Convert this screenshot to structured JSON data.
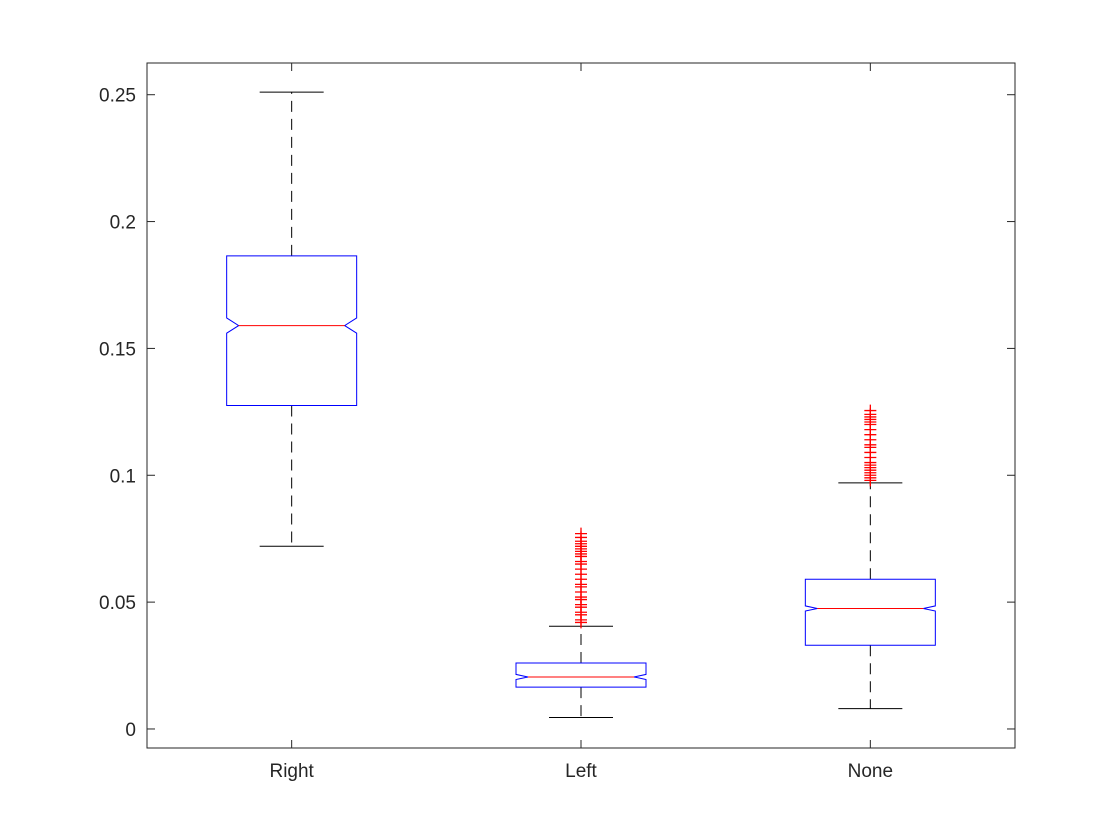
{
  "chart_data": {
    "type": "boxplot",
    "notched": true,
    "title": "",
    "xlabel": "",
    "ylabel": "",
    "ylim": [
      -0.0075,
      0.2625
    ],
    "yticks": [
      0,
      0.05,
      0.1,
      0.15,
      0.2,
      0.25
    ],
    "ytick_labels": [
      "0",
      "0.05",
      "0.1",
      "0.15",
      "0.2",
      "0.25"
    ],
    "categories": [
      "Right",
      "Left",
      "None"
    ],
    "boxes": [
      {
        "label": "Right",
        "whisker_low": 0.072,
        "q1": 0.1275,
        "median": 0.159,
        "q3": 0.1865,
        "whisker_high": 0.251,
        "notch_low": 0.156,
        "notch_high": 0.162,
        "outliers": []
      },
      {
        "label": "Left",
        "whisker_low": 0.0045,
        "q1": 0.0165,
        "median": 0.0205,
        "q3": 0.026,
        "whisker_high": 0.0405,
        "notch_low": 0.0195,
        "notch_high": 0.0215,
        "outliers": [
          0.042,
          0.043,
          0.045,
          0.046,
          0.048,
          0.049,
          0.051,
          0.052,
          0.054,
          0.056,
          0.057,
          0.059,
          0.061,
          0.063,
          0.065,
          0.066,
          0.068,
          0.069,
          0.07,
          0.071,
          0.072,
          0.073,
          0.074,
          0.0755,
          0.077
        ]
      },
      {
        "label": "None",
        "whisker_low": 0.008,
        "q1": 0.033,
        "median": 0.0475,
        "q3": 0.059,
        "whisker_high": 0.097,
        "notch_low": 0.0465,
        "notch_high": 0.0485,
        "outliers": [
          0.098,
          0.099,
          0.1,
          0.101,
          0.102,
          0.103,
          0.104,
          0.105,
          0.107,
          0.109,
          0.111,
          0.112,
          0.114,
          0.116,
          0.118,
          0.12,
          0.121,
          0.122,
          0.123,
          0.124,
          0.1255
        ]
      }
    ],
    "colors": {
      "box": "#0000ff",
      "median": "#ff0000",
      "whisker": "#000000",
      "outlier": "#ff0000",
      "axis": "#262626"
    },
    "grid": false,
    "legend": "none"
  }
}
